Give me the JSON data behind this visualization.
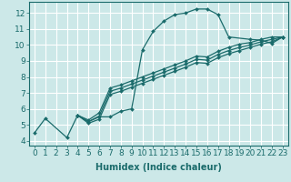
{
  "bg_color": "#cce8e8",
  "grid_color": "#ffffff",
  "line_color": "#1a6b6b",
  "xlabel": "Humidex (Indice chaleur)",
  "xlabel_fontsize": 7,
  "tick_fontsize": 6.5,
  "xlim": [
    -0.5,
    23.5
  ],
  "ylim": [
    3.7,
    12.7
  ],
  "xticks": [
    0,
    1,
    2,
    3,
    4,
    5,
    6,
    7,
    8,
    9,
    10,
    11,
    12,
    13,
    14,
    15,
    16,
    17,
    18,
    19,
    20,
    21,
    22,
    23
  ],
  "yticks": [
    4,
    5,
    6,
    7,
    8,
    9,
    10,
    11,
    12
  ],
  "series": [
    {
      "x": [
        0,
        1,
        3,
        4,
        5,
        6,
        7,
        8,
        9,
        10,
        11,
        12,
        13,
        14,
        15,
        16,
        17,
        18,
        20,
        21,
        22,
        23
      ],
      "y": [
        4.5,
        5.4,
        4.2,
        5.6,
        5.2,
        5.5,
        5.5,
        5.85,
        6.0,
        9.7,
        10.85,
        11.5,
        11.9,
        12.0,
        12.25,
        12.25,
        11.9,
        10.5,
        10.35,
        10.3,
        10.1,
        10.5
      ]
    },
    {
      "x": [
        4,
        5,
        6,
        7,
        8,
        9,
        10,
        11,
        12,
        13,
        14,
        15,
        16,
        17,
        18,
        19,
        20,
        21,
        22,
        23
      ],
      "y": [
        5.6,
        5.1,
        5.35,
        6.9,
        7.1,
        7.35,
        7.6,
        7.85,
        8.1,
        8.35,
        8.6,
        8.9,
        8.85,
        9.2,
        9.45,
        9.65,
        9.85,
        10.05,
        10.2,
        10.5
      ]
    },
    {
      "x": [
        4,
        5,
        6,
        7,
        8,
        9,
        10,
        11,
        12,
        13,
        14,
        15,
        16,
        17,
        18,
        19,
        20,
        21,
        22,
        23
      ],
      "y": [
        5.6,
        5.2,
        5.55,
        7.1,
        7.3,
        7.55,
        7.8,
        8.05,
        8.3,
        8.55,
        8.8,
        9.1,
        9.05,
        9.4,
        9.65,
        9.85,
        10.0,
        10.2,
        10.35,
        10.5
      ]
    },
    {
      "x": [
        4,
        5,
        6,
        7,
        8,
        9,
        10,
        11,
        12,
        13,
        14,
        15,
        16,
        17,
        18,
        19,
        20,
        21,
        22,
        23
      ],
      "y": [
        5.6,
        5.3,
        5.75,
        7.3,
        7.5,
        7.75,
        8.0,
        8.25,
        8.5,
        8.75,
        9.0,
        9.3,
        9.25,
        9.6,
        9.85,
        10.05,
        10.15,
        10.35,
        10.5,
        10.5
      ]
    }
  ]
}
